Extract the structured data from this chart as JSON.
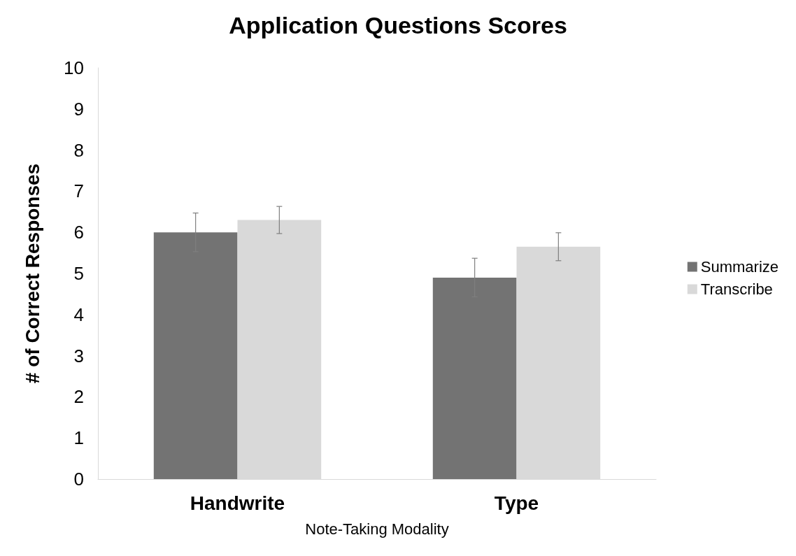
{
  "chart_data": {
    "type": "bar",
    "title": "Application Questions Scores",
    "xlabel": "Note-Taking Modality",
    "ylabel": "# of Correct Responses",
    "categories": [
      "Handwrite",
      "Type"
    ],
    "series": [
      {
        "name": "Summarize",
        "color": "#737373",
        "values": [
          6.0,
          4.9
        ],
        "errors": [
          0.47,
          0.47
        ]
      },
      {
        "name": "Transcribe",
        "color": "#d9d9d9",
        "values": [
          6.3,
          5.65
        ],
        "errors": [
          0.33,
          0.34
        ]
      }
    ],
    "ylim": [
      0,
      10
    ],
    "yticks": [
      0,
      1,
      2,
      3,
      4,
      5,
      6,
      7,
      8,
      9,
      10
    ],
    "grid": false,
    "legend": "right"
  }
}
